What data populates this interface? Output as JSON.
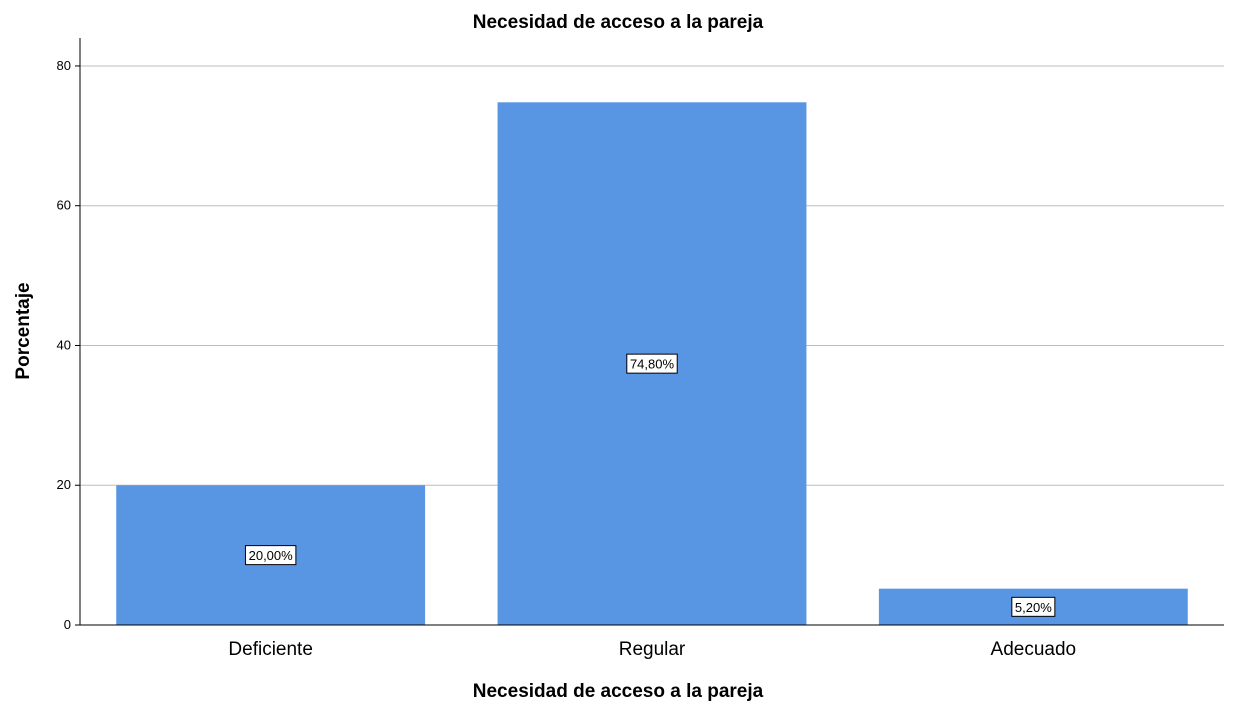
{
  "chart_data": {
    "type": "bar",
    "title": "Necesidad de acceso a la pareja",
    "xlabel": "Necesidad de acceso a la pareja",
    "ylabel": "Porcentaje",
    "categories": [
      "Deficiente",
      "Regular",
      "Adecuado"
    ],
    "values": [
      20.0,
      74.8,
      5.2
    ],
    "data_labels": [
      "20,00%",
      "74,80%",
      "5,20%"
    ],
    "yticks": [
      0,
      20,
      40,
      60,
      80
    ],
    "ylim": [
      0,
      84
    ],
    "grid": true,
    "bar_color": "#5896e3"
  }
}
